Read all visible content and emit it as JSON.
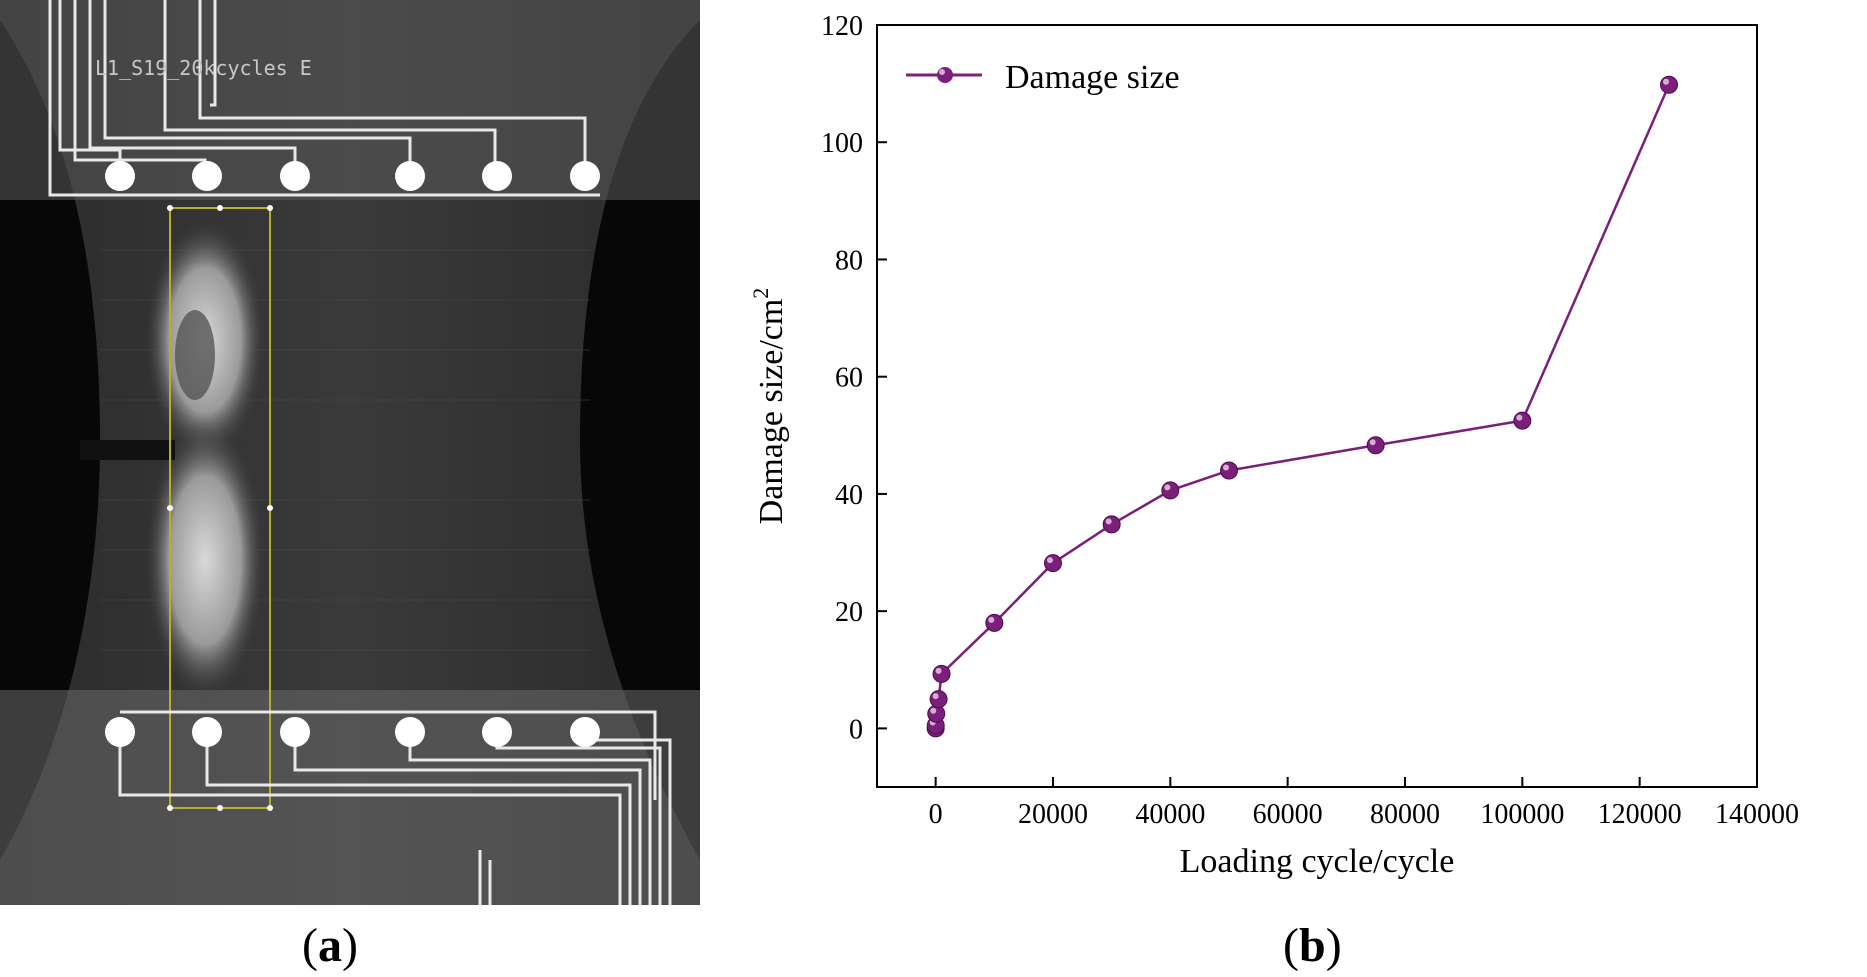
{
  "panels": {
    "a": {
      "caption": "a",
      "specimen_label": "L1_S19_20kcycles E"
    },
    "b": {
      "caption": "b"
    }
  },
  "colors": {
    "series": "#7b1f7a",
    "axis": "#000000",
    "background": "#ffffff"
  },
  "chart_data": {
    "type": "line",
    "title": "",
    "xlabel": "Loading cycle/cycle",
    "ylabel": "Damage size/cm",
    "ylabel_superscript": "2",
    "xlim": [
      -10000,
      140000
    ],
    "ylim": [
      -10,
      120
    ],
    "xticks": [
      0,
      20000,
      40000,
      60000,
      80000,
      100000,
      120000,
      140000
    ],
    "yticks": [
      0,
      20,
      40,
      60,
      80,
      100,
      120
    ],
    "legend": {
      "position": "top-left"
    },
    "grid": false,
    "series": [
      {
        "name": "Damage size",
        "marker": "sphere",
        "x": [
          0,
          10,
          100,
          500,
          1000,
          10000,
          20000,
          30000,
          40000,
          50000,
          75000,
          100000,
          125000
        ],
        "y": [
          0,
          0.5,
          2.5,
          5,
          9.3,
          18,
          28.2,
          34.8,
          40.6,
          44,
          48.3,
          52.5,
          109.8
        ]
      }
    ]
  }
}
